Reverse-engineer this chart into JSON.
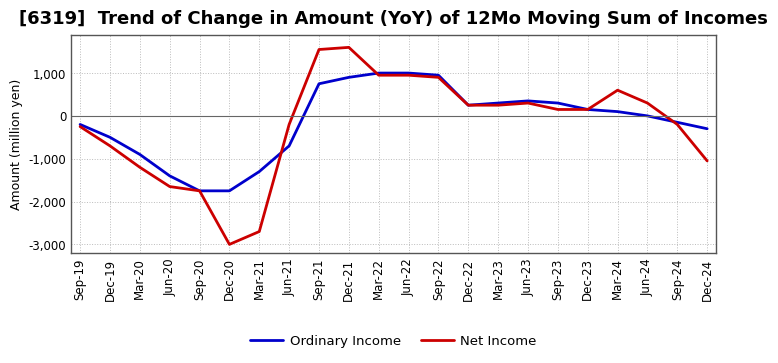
{
  "title": "[6319]  Trend of Change in Amount (YoY) of 12Mo Moving Sum of Incomes",
  "ylabel": "Amount (million yen)",
  "x_labels": [
    "Sep-19",
    "Dec-19",
    "Mar-20",
    "Jun-20",
    "Sep-20",
    "Dec-20",
    "Mar-21",
    "Jun-21",
    "Sep-21",
    "Dec-21",
    "Mar-22",
    "Jun-22",
    "Sep-22",
    "Dec-22",
    "Mar-23",
    "Jun-23",
    "Sep-23",
    "Dec-23",
    "Mar-24",
    "Jun-24",
    "Sep-24",
    "Dec-24"
  ],
  "ordinary_income": [
    -200,
    -500,
    -900,
    -1400,
    -1750,
    -1750,
    -1300,
    -700,
    750,
    900,
    1000,
    1000,
    950,
    250,
    300,
    350,
    300,
    150,
    100,
    0,
    -150,
    -300
  ],
  "net_income": [
    -250,
    -700,
    -1200,
    -1650,
    -1750,
    -3000,
    -2700,
    -200,
    1550,
    1600,
    950,
    950,
    900,
    250,
    250,
    300,
    150,
    150,
    600,
    300,
    -200,
    -1050
  ],
  "ordinary_color": "#0000cc",
  "net_color": "#cc0000",
  "ylim": [
    -3200,
    1900
  ],
  "yticks": [
    -3000,
    -2000,
    -1000,
    0,
    1000
  ],
  "grid_color": "#bbbbbb",
  "background_color": "#ffffff",
  "spine_color": "#555555",
  "title_fontsize": 13,
  "label_fontsize": 9,
  "tick_fontsize": 8.5,
  "linewidth": 2.0
}
